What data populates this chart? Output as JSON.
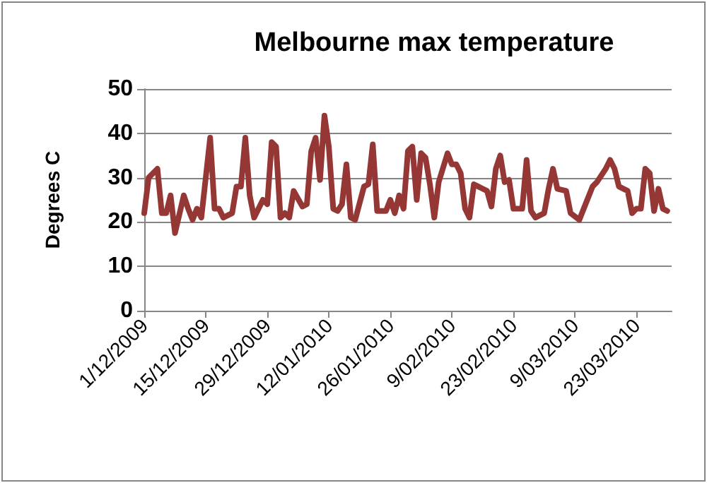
{
  "chart_data": {
    "type": "line",
    "title": "Melbourne max temperature",
    "ylabel": "Degrees C",
    "x": [
      "2009-12-01",
      "2009-12-02",
      "2009-12-04",
      "2009-12-05",
      "2009-12-06",
      "2009-12-07",
      "2009-12-08",
      "2009-12-10",
      "2009-12-11",
      "2009-12-12",
      "2009-12-13",
      "2009-12-14",
      "2009-12-16",
      "2009-12-17",
      "2009-12-18",
      "2009-12-19",
      "2009-12-21",
      "2009-12-22",
      "2009-12-23",
      "2009-12-24",
      "2009-12-25",
      "2009-12-26",
      "2009-12-28",
      "2009-12-29",
      "2009-12-30",
      "2009-12-31",
      "2010-01-01",
      "2010-01-02",
      "2010-01-03",
      "2010-01-04",
      "2010-01-06",
      "2010-01-07",
      "2010-01-08",
      "2010-01-09",
      "2010-01-10",
      "2010-01-11",
      "2010-01-12",
      "2010-01-13",
      "2010-01-14",
      "2010-01-15",
      "2010-01-16",
      "2010-01-17",
      "2010-01-18",
      "2010-01-20",
      "2010-01-21",
      "2010-01-22",
      "2010-01-23",
      "2010-01-25",
      "2010-01-26",
      "2010-01-27",
      "2010-01-28",
      "2010-01-29",
      "2010-01-30",
      "2010-01-31",
      "2010-02-01",
      "2010-02-02",
      "2010-02-03",
      "2010-02-04",
      "2010-02-05",
      "2010-02-06",
      "2010-02-08",
      "2010-02-09",
      "2010-02-10",
      "2010-02-11",
      "2010-02-12",
      "2010-02-13",
      "2010-02-14",
      "2010-02-15",
      "2010-02-16",
      "2010-02-17",
      "2010-02-18",
      "2010-02-19",
      "2010-02-20",
      "2010-02-21",
      "2010-02-22",
      "2010-02-23",
      "2010-02-25",
      "2010-02-26",
      "2010-02-27",
      "2010-02-28",
      "2010-03-02",
      "2010-03-03",
      "2010-03-04",
      "2010-03-05",
      "2010-03-07",
      "2010-03-08",
      "2010-03-10",
      "2010-03-11",
      "2010-03-13",
      "2010-03-14",
      "2010-03-16",
      "2010-03-17",
      "2010-03-18",
      "2010-03-19",
      "2010-03-21",
      "2010-03-22",
      "2010-03-23",
      "2010-03-24",
      "2010-03-25",
      "2010-03-26",
      "2010-03-27",
      "2010-03-28",
      "2010-03-29",
      "2010-03-30"
    ],
    "values": [
      22,
      30,
      32,
      22,
      22,
      26,
      17.5,
      26,
      23,
      20.5,
      23,
      21,
      39,
      23,
      23,
      21,
      22,
      28,
      28,
      39,
      26,
      21,
      25,
      24,
      38,
      37,
      21,
      22,
      21,
      27,
      23.5,
      24,
      36,
      39,
      29.5,
      44,
      37,
      23,
      22.5,
      24,
      33,
      21,
      20.5,
      28,
      28.5,
      37.5,
      22.5,
      22.5,
      25,
      22,
      26,
      23,
      36,
      37,
      25,
      35.5,
      34.5,
      28.5,
      21,
      29,
      35.5,
      33,
      33,
      31,
      23,
      21,
      28.5,
      28,
      27.5,
      27,
      23.5,
      32,
      35,
      29,
      29.5,
      23,
      23,
      34,
      22.5,
      21,
      22,
      27.5,
      32,
      27.5,
      27,
      22,
      20.5,
      23,
      28,
      29,
      32,
      34,
      32,
      28,
      27,
      22,
      23,
      23,
      32,
      31,
      22.5,
      27.5,
      23,
      22.5
    ],
    "color": "#953735",
    "xlim": [
      "2009-12-01",
      "2010-03-31"
    ],
    "xticks": [
      {
        "value": "2009-12-01",
        "label": "1/12/2009"
      },
      {
        "value": "2009-12-15",
        "label": "15/12/2009"
      },
      {
        "value": "2009-12-29",
        "label": "29/12/2009"
      },
      {
        "value": "2010-01-12",
        "label": "12/01/2010"
      },
      {
        "value": "2010-01-26",
        "label": "26/01/2010"
      },
      {
        "value": "2010-02-09",
        "label": "9/02/2010"
      },
      {
        "value": "2010-02-23",
        "label": "23/02/2010"
      },
      {
        "value": "2010-03-09",
        "label": "9/03/2010"
      },
      {
        "value": "2010-03-23",
        "label": "23/03/2010"
      }
    ],
    "ylim": [
      0,
      50
    ],
    "yticks": [
      0,
      10,
      20,
      30,
      40,
      50
    ],
    "grid": "y"
  }
}
